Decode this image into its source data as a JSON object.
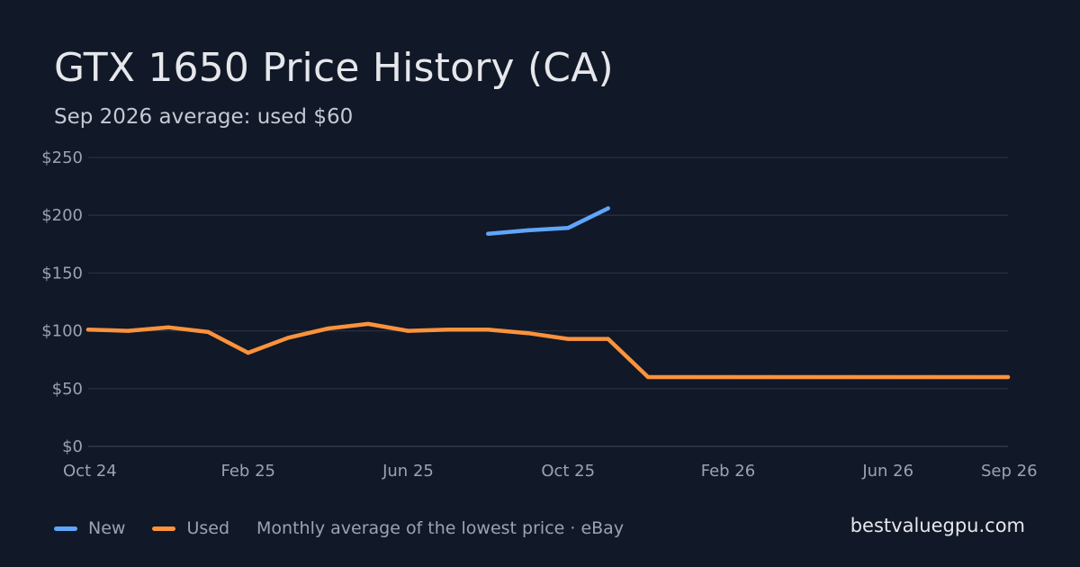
{
  "title": "GTX 1650 Price History (CA)",
  "subtitle": "Sep 2026 average: used $60",
  "legend": {
    "items": [
      {
        "label": "New",
        "color": "#60a5fa"
      },
      {
        "label": "Used",
        "color": "#fb923c"
      }
    ],
    "note": "Monthly average of the lowest price · eBay"
  },
  "brand": "bestvaluegpu.com",
  "chart_data": {
    "type": "line",
    "title": "GTX 1650 Price History (CA)",
    "subtitle": "Sep 2026 average: used $60",
    "x": [
      "2024-10",
      "2024-11",
      "2024-12",
      "2025-01",
      "2025-02",
      "2025-03",
      "2025-04",
      "2025-05",
      "2025-06",
      "2025-07",
      "2025-08",
      "2025-09",
      "2025-10",
      "2025-11",
      "2025-12",
      "2026-01",
      "2026-02",
      "2026-03",
      "2026-04",
      "2026-05",
      "2026-06",
      "2026-07",
      "2026-08",
      "2026-09"
    ],
    "series": [
      {
        "name": "New",
        "color": "#60a5fa",
        "values": [
          null,
          null,
          null,
          null,
          null,
          null,
          null,
          null,
          null,
          null,
          184,
          187,
          189,
          206,
          null,
          null,
          null,
          null,
          null,
          null,
          null,
          null,
          null,
          null
        ]
      },
      {
        "name": "Used",
        "color": "#fb923c",
        "values": [
          101,
          100,
          103,
          99,
          81,
          94,
          102,
          106,
          100,
          101,
          101,
          98,
          93,
          93,
          60,
          60,
          60,
          60,
          60,
          60,
          60,
          60,
          60,
          60
        ]
      }
    ],
    "ylim": [
      0,
      250
    ],
    "yticks": [
      0,
      50,
      100,
      150,
      200,
      250
    ],
    "ytick_labels": [
      "$0",
      "$50",
      "$100",
      "$150",
      "$200",
      "$250"
    ],
    "xticks": [
      {
        "x": "2024-10",
        "label": "Oct 24"
      },
      {
        "x": "2025-02",
        "label": "Feb 25"
      },
      {
        "x": "2025-06",
        "label": "Jun 25"
      },
      {
        "x": "2025-10",
        "label": "Oct 25"
      },
      {
        "x": "2026-02",
        "label": "Feb 26"
      },
      {
        "x": "2026-06",
        "label": "Jun 26"
      },
      {
        "x": "2026-09",
        "label": "Sep 26"
      }
    ],
    "grid": true,
    "legend_position": "bottom-left"
  }
}
